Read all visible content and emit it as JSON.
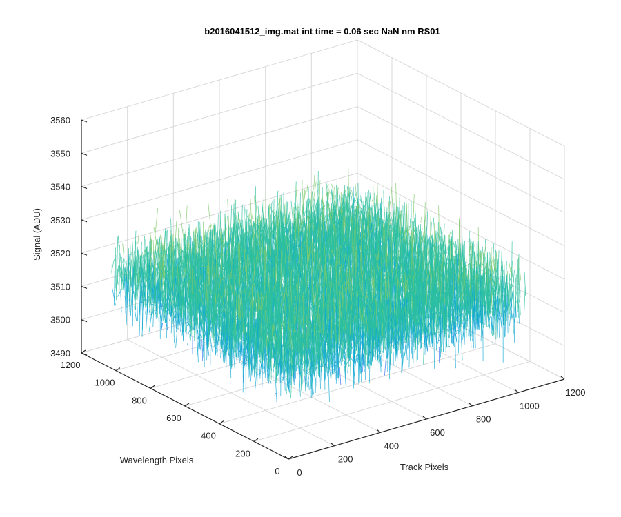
{
  "chart_data": {
    "type": "surface",
    "title": "b2016041512_img.mat int time = 0.06 sec  NaN nm RS01",
    "xlabel": "Track Pixels",
    "ylabel": "Wavelength Pixels",
    "zlabel": "Signal (ADU)",
    "xlim": [
      0,
      1200
    ],
    "ylim": [
      0,
      1200
    ],
    "zlim": [
      3490,
      3560
    ],
    "x_ticks": [
      0,
      200,
      400,
      600,
      800,
      1000,
      1200
    ],
    "y_ticks": [
      0,
      200,
      400,
      600,
      800,
      1000,
      1200
    ],
    "z_ticks": [
      3490,
      3500,
      3510,
      3520,
      3530,
      3540,
      3550,
      3560
    ],
    "grid": true,
    "surface": {
      "x_range": [
        1,
        1024
      ],
      "y_range": [
        1,
        1024
      ],
      "signal_mean": 3518,
      "signal_min_approx": 3492,
      "signal_max_approx": 3556
    },
    "colormap": [
      "#3e26a8",
      "#2f6cf2",
      "#0ea7d3",
      "#2cbf9f",
      "#7fc96b",
      "#c2bf3b",
      "#f8c92c",
      "#f9fb0e"
    ]
  }
}
